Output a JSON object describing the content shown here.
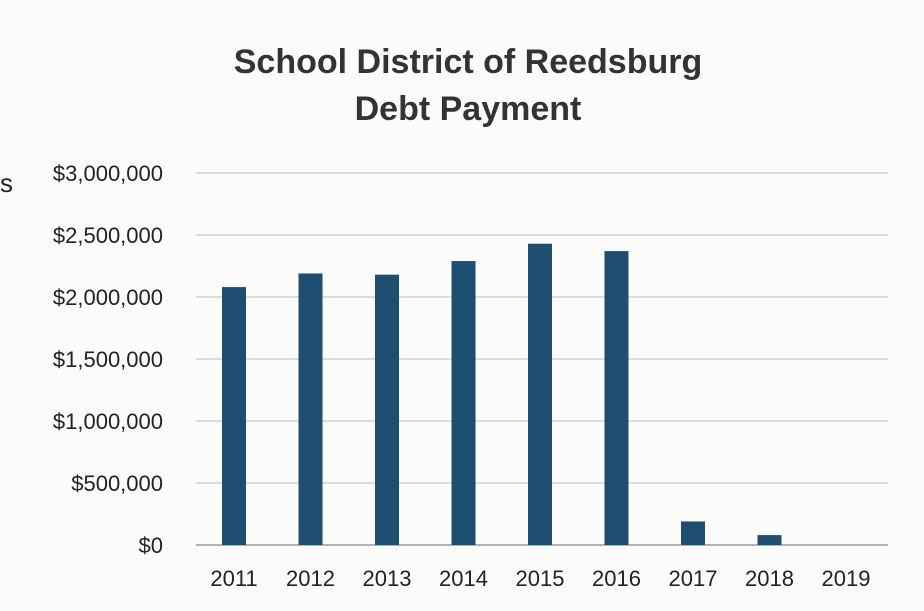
{
  "chart_data": {
    "type": "bar",
    "title": [
      "School District of Reedsburg",
      "Debt Payment"
    ],
    "categories": [
      "2011",
      "2012",
      "2013",
      "2014",
      "2015",
      "2016",
      "2017",
      "2018",
      "2019"
    ],
    "values": [
      2080000,
      2190000,
      2180000,
      2290000,
      2430000,
      2370000,
      190000,
      80000,
      0
    ],
    "ylim": [
      0,
      3000000
    ],
    "yticks": [
      0,
      500000,
      1000000,
      1500000,
      2000000,
      2500000,
      3000000
    ],
    "ytick_labels": [
      "$0",
      "$500,000",
      "$1,000,000",
      "$1,500,000",
      "$2,000,000",
      "$2,500,000",
      "$3,000,000"
    ],
    "xlabel": "",
    "ylabel": "",
    "grid": true,
    "legend": "none",
    "bar_color": "#1f4e73"
  },
  "edge_fragment": "s"
}
